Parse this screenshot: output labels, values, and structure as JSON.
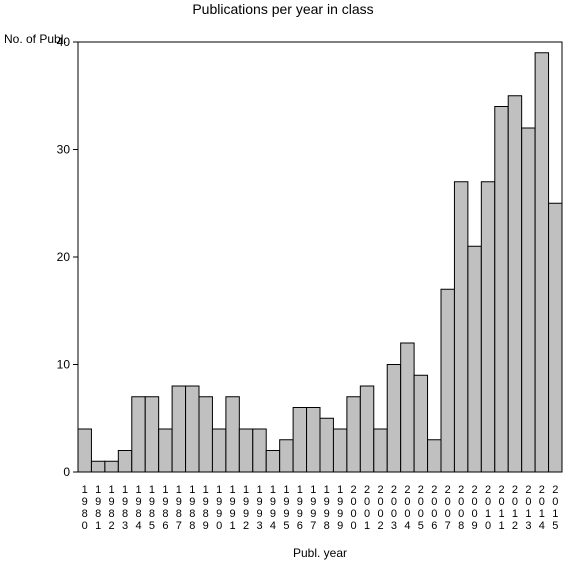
{
  "chart_data": {
    "type": "bar",
    "title": "Publications per year in class",
    "ylabel": "No. of Publ.",
    "xlabel": "Publ. year",
    "ylim": [
      0,
      40
    ],
    "yticks": [
      0,
      10,
      20,
      30,
      40
    ],
    "grid": false,
    "categories": [
      "1980",
      "1981",
      "1982",
      "1983",
      "1984",
      "1985",
      "1986",
      "1987",
      "1988",
      "1989",
      "1990",
      "1991",
      "1992",
      "1993",
      "1994",
      "1995",
      "1996",
      "1997",
      "1998",
      "1999",
      "2000",
      "2001",
      "2002",
      "2003",
      "2004",
      "2005",
      "2006",
      "2007",
      "2008",
      "2009",
      "2010",
      "2011",
      "2012",
      "2013",
      "2014",
      "2015"
    ],
    "values": [
      4,
      1,
      1,
      2,
      7,
      7,
      4,
      8,
      8,
      7,
      4,
      7,
      4,
      4,
      2,
      3,
      6,
      6,
      5,
      4,
      7,
      8,
      4,
      10,
      12,
      9,
      3,
      17,
      27,
      21,
      27,
      34,
      35,
      32,
      39,
      25
    ],
    "bar_color": "#c0c0c0"
  }
}
